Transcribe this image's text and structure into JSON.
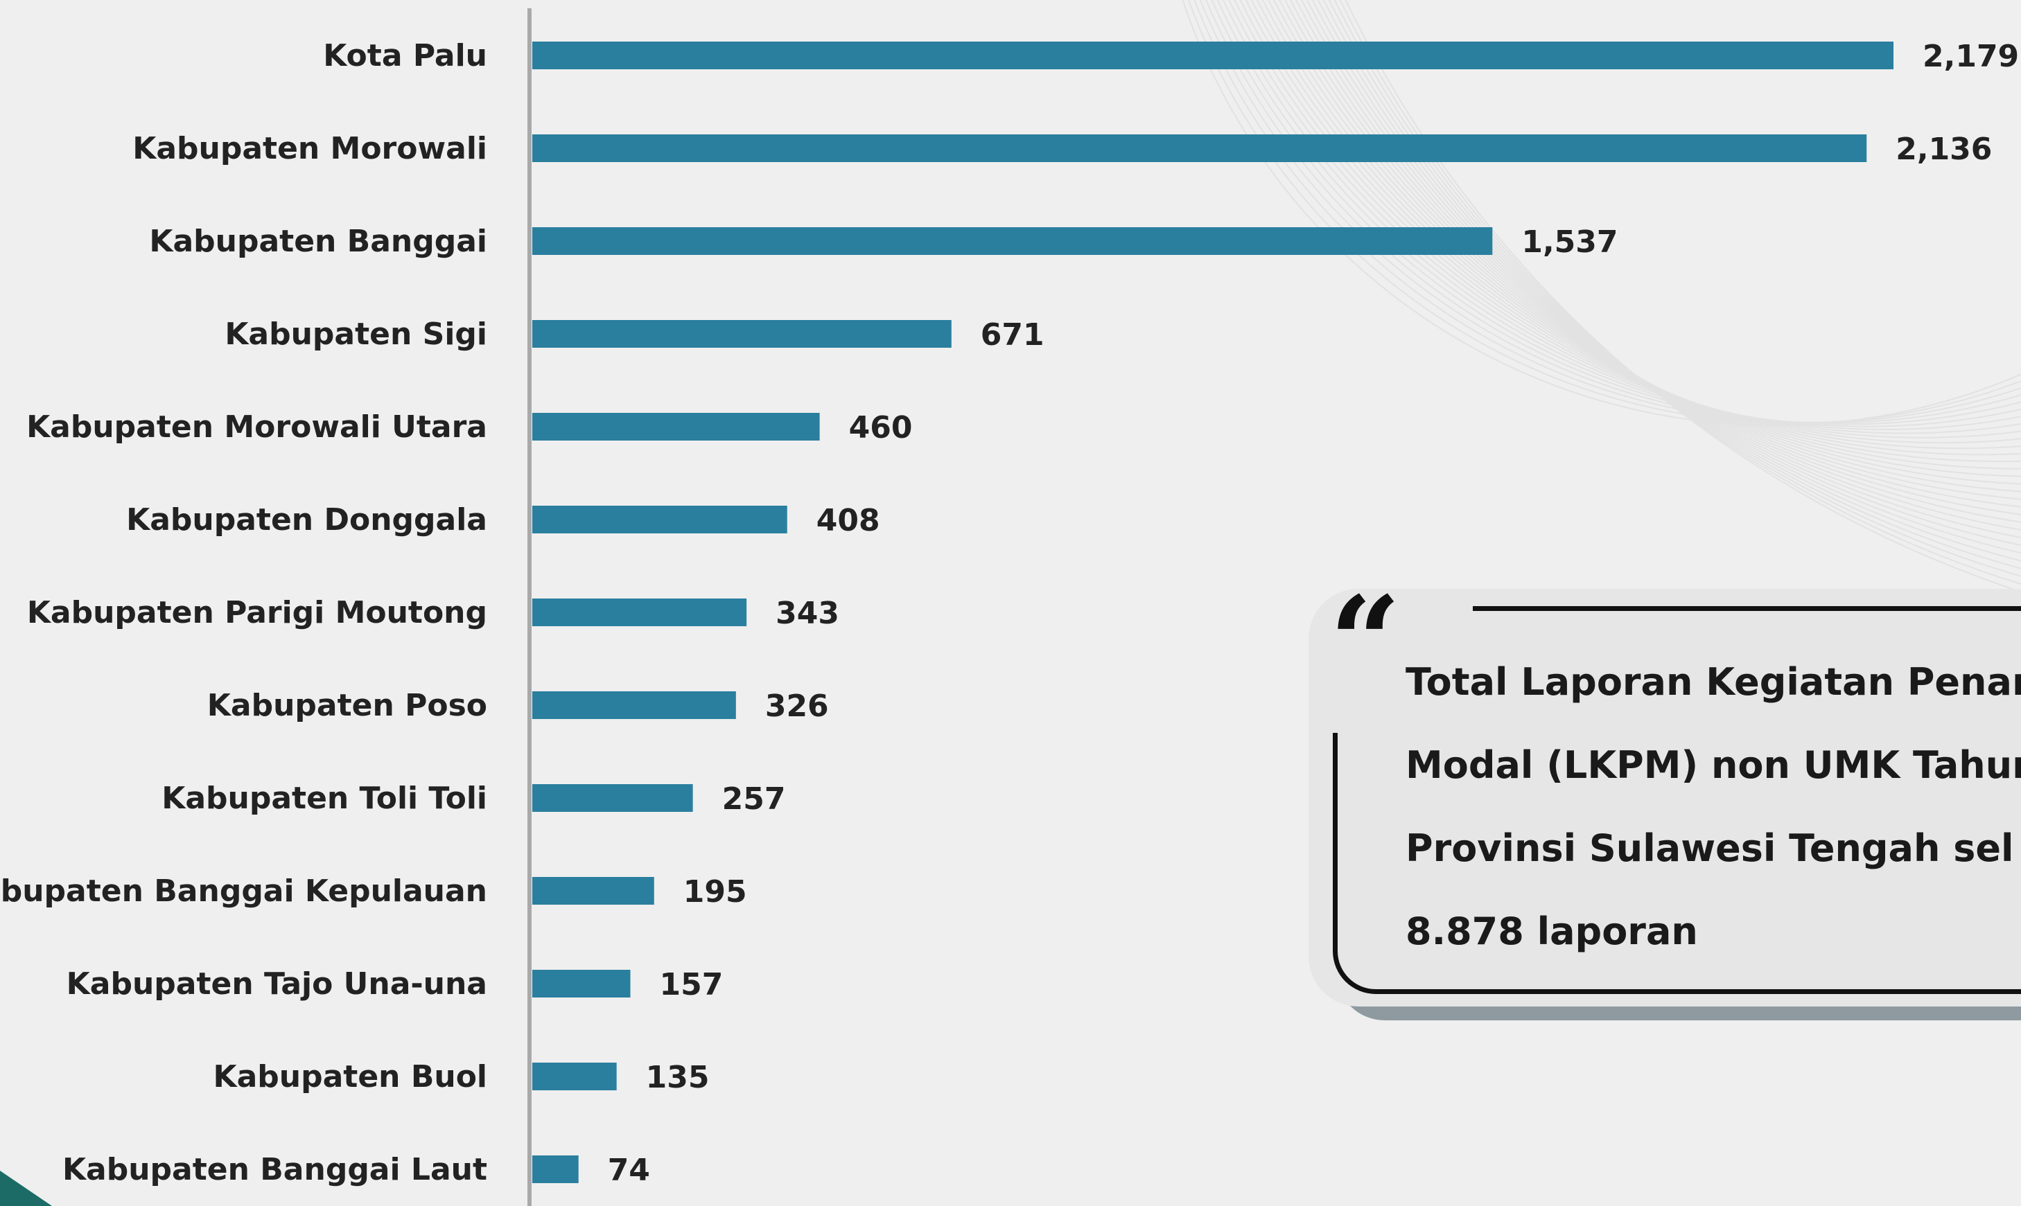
{
  "colors": {
    "bar": "#2a7f9e",
    "axis": "#a9a9a9",
    "text": "#222222",
    "corner_accent": "#1d6b66"
  },
  "chart_data": {
    "type": "bar",
    "orientation": "horizontal",
    "categories": [
      "Kota Palu",
      "Kabupaten Morowali",
      "Kabupaten Banggai",
      "Kabupaten Sigi",
      "Kabupaten Morowali Utara",
      "Kabupaten Donggala",
      "Kabupaten Parigi Moutong",
      "Kabupaten Poso",
      "Kabupaten Toli Toli",
      "Kabupaten Banggai Kepulauan",
      "Kabupaten Tajo Una-una",
      "Kabupaten Buol",
      "Kabupaten Banggai Laut"
    ],
    "values": [
      2179,
      2136,
      1537,
      671,
      460,
      408,
      343,
      326,
      257,
      195,
      157,
      135,
      74
    ],
    "value_labels": [
      "2,179",
      "2,136",
      "1,537",
      "671",
      "460",
      "408",
      "343",
      "326",
      "257",
      "195",
      "157",
      "135",
      "74"
    ],
    "xlim": [
      0,
      2179
    ],
    "grid": false,
    "legend": "none"
  },
  "callout": {
    "icon": "quote-icon",
    "quote_mark": "“",
    "lines": [
      "Total Laporan Kegiatan Penanc",
      "Modal (LKPM) non UMK Tahun",
      "Provinsi  Sulawesi  Tengah  sel",
      "8.878 laporan"
    ]
  }
}
